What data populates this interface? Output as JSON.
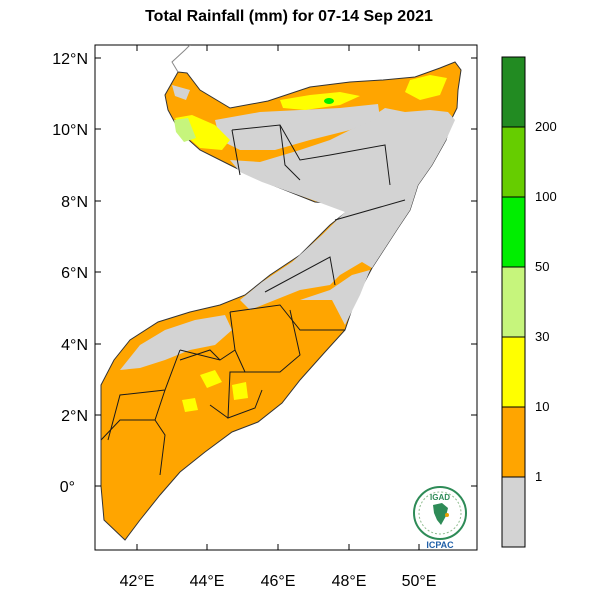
{
  "title": "Total Rainfall (mm) for 07-14 Sep 2021",
  "map": {
    "lat_labels": [
      "12°N",
      "10°N",
      "8°N",
      "6°N",
      "4°N",
      "2°N",
      "0°"
    ],
    "lon_labels": [
      "42°E",
      "44°E",
      "46°E",
      "48°E",
      "50°E"
    ]
  },
  "colorbar": {
    "labels": [
      "200",
      "100",
      "50",
      "30",
      "10",
      "1"
    ],
    "classes": [
      {
        "range": "<1",
        "color": "#d3d3d3"
      },
      {
        "range": "1-10",
        "color": "#ffa500"
      },
      {
        "range": "10-30",
        "color": "#ffff00"
      },
      {
        "range": "30-50",
        "color": "#c6f57c"
      },
      {
        "range": "50-100",
        "color": "#00ee00"
      },
      {
        "range": "100-200",
        "color": "#66cd00"
      },
      {
        "range": ">200",
        "color": "#228b22"
      }
    ]
  },
  "logo": {
    "top_text": "IGAD",
    "bottom_text": "ICPAC"
  }
}
